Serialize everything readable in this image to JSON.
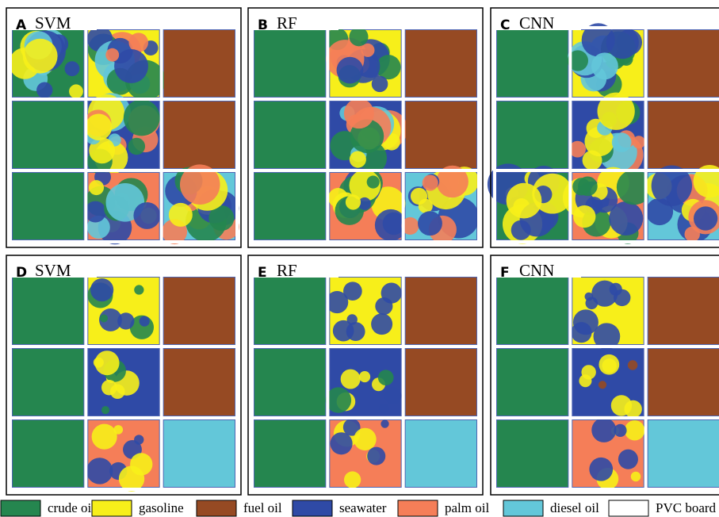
{
  "panels": [
    {
      "letter": "A",
      "title": "SVM"
    },
    {
      "letter": "B",
      "title": "RF"
    },
    {
      "letter": "C",
      "title": "CNN"
    },
    {
      "letter": "D",
      "title": "SVM"
    },
    {
      "letter": "E",
      "title": "RF"
    },
    {
      "letter": "F",
      "title": "CNN"
    }
  ],
  "legend": {
    "items": [
      {
        "label": "crude oil",
        "color": "#25864f"
      },
      {
        "label": "gasoline",
        "color": "#f7ef1a"
      },
      {
        "label": "fuel oil",
        "color": "#964a23"
      },
      {
        "label": "seawater",
        "color": "#2f4aa6"
      },
      {
        "label": "palm oil",
        "color": "#f57e58"
      },
      {
        "label": "diesel oil",
        "color": "#63c7d9"
      },
      {
        "label": "PVC board",
        "color": "#ffffff"
      }
    ]
  }
}
